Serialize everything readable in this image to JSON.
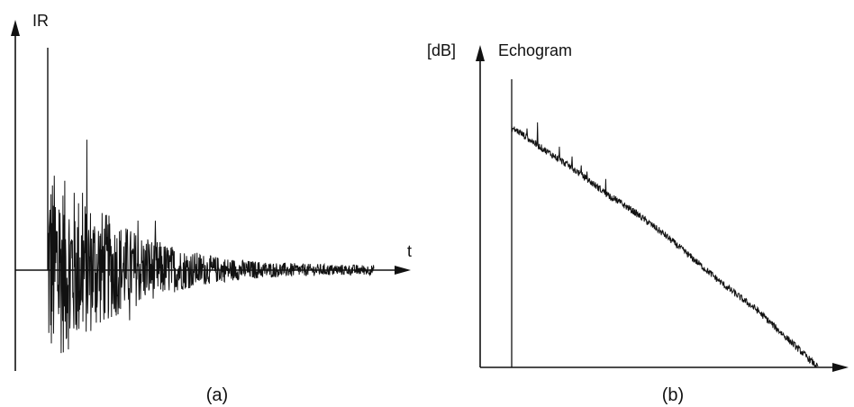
{
  "chart_data": [
    {
      "type": "line",
      "panel_label": "(a)",
      "title": "",
      "ylabel": "IR",
      "xlabel": "t",
      "direct_sound_peak": 0.98,
      "series": [
        {
          "envelope": {
            "t": [
              0.0,
              0.02,
              0.05,
              0.1,
              0.2,
              0.3,
              0.4,
              0.5,
              0.6,
              0.7,
              0.8,
              0.9,
              1.0
            ],
            "amplitude": [
              0.46,
              0.44,
              0.4,
              0.34,
              0.23,
              0.15,
              0.1,
              0.065,
              0.045,
              0.034,
              0.028,
              0.025,
              0.023
            ]
          }
        }
      ],
      "ylim": [
        -0.45,
        1.0
      ],
      "xlim": [
        0,
        1
      ]
    },
    {
      "type": "line",
      "panel_label": "(b)",
      "title": "Echogram",
      "ylabel": "[dB]",
      "xlabel": "",
      "series": [
        {
          "x": [
            0.0,
            0.02,
            0.1,
            0.2,
            0.3,
            0.4,
            0.5,
            0.6,
            0.7,
            0.8,
            0.9,
            1.0
          ],
          "y": [
            0.83,
            0.82,
            0.76,
            0.69,
            0.61,
            0.54,
            0.46,
            0.37,
            0.28,
            0.2,
            0.1,
            0.0
          ]
        }
      ],
      "direct_peak": 1.0,
      "ylim": [
        0,
        1
      ],
      "xlim": [
        0,
        1
      ]
    }
  ]
}
